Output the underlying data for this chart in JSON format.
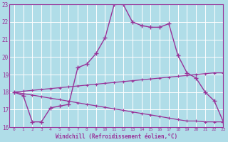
{
  "xlabel": "Windchill (Refroidissement éolien,°C)",
  "hours": [
    0,
    1,
    2,
    3,
    4,
    5,
    6,
    7,
    8,
    9,
    10,
    11,
    12,
    13,
    14,
    15,
    16,
    17,
    18,
    19,
    20,
    21,
    22,
    23
  ],
  "temp_line": [
    18.0,
    17.8,
    16.3,
    16.3,
    17.1,
    17.2,
    17.3,
    19.4,
    19.6,
    20.2,
    21.1,
    23.0,
    23.0,
    22.0,
    21.8,
    21.7,
    21.7,
    21.9,
    20.1,
    19.1,
    18.8,
    18.0,
    17.5,
    16.3
  ],
  "upper_line": [
    18.0,
    18.05,
    18.1,
    18.15,
    18.2,
    18.25,
    18.3,
    18.35,
    18.4,
    18.45,
    18.5,
    18.55,
    18.6,
    18.65,
    18.7,
    18.75,
    18.8,
    18.85,
    18.9,
    18.95,
    19.0,
    19.05,
    19.1,
    19.1
  ],
  "lower_line": [
    18.0,
    17.91,
    17.83,
    17.74,
    17.65,
    17.57,
    17.48,
    17.39,
    17.3,
    17.22,
    17.13,
    17.04,
    16.96,
    16.87,
    16.78,
    16.7,
    16.61,
    16.52,
    16.43,
    16.35,
    16.35,
    16.3,
    16.3,
    16.3
  ],
  "line_color": "#993399",
  "bg_color": "#b0dde8",
  "grid_color": "#ffffff",
  "ylim": [
    16,
    23
  ],
  "yticks": [
    16,
    17,
    18,
    19,
    20,
    21,
    22,
    23
  ],
  "xlim": [
    -0.5,
    23
  ]
}
